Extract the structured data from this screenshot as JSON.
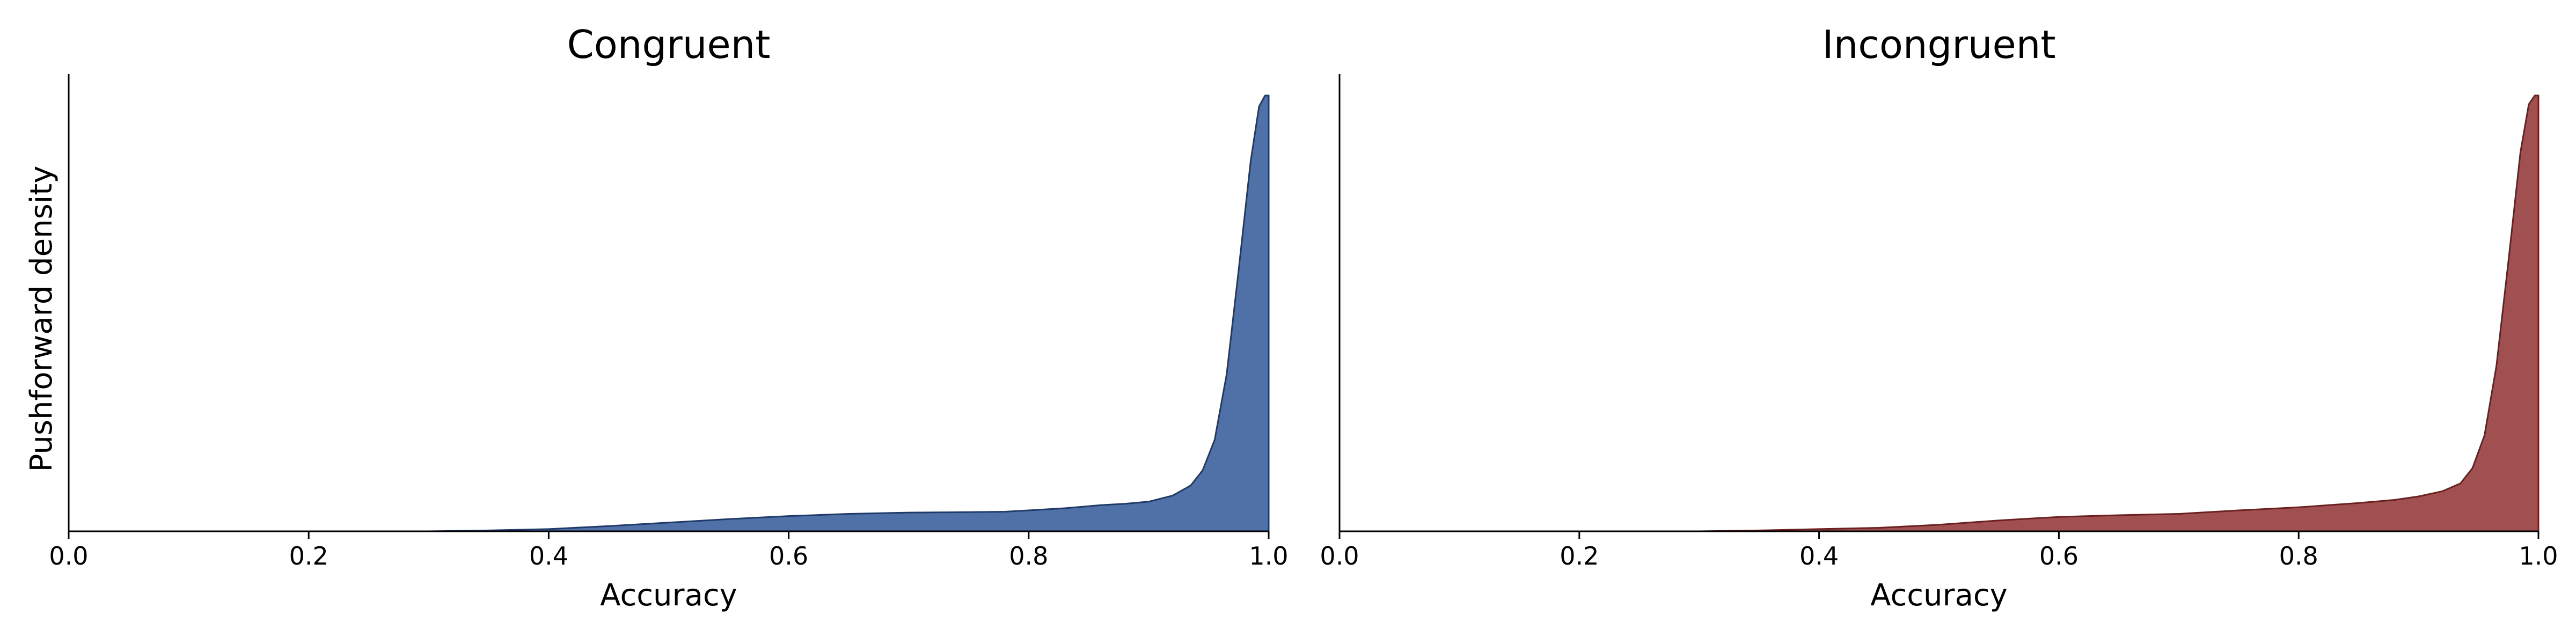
{
  "chart_data": [
    {
      "type": "area",
      "title": "Congruent",
      "xlabel": "Accuracy",
      "ylabel": "Pushforward density",
      "xlim": [
        0.0,
        1.0
      ],
      "xticks": [
        "0.0",
        "0.2",
        "0.4",
        "0.6",
        "0.8",
        "1.0"
      ],
      "ylim": [
        0,
        1.0
      ],
      "show_yticks": false,
      "grid": false,
      "fill_color": "#4f71a8",
      "line_color": "#1f3a68",
      "series": [
        {
          "x": [
            0.3,
            0.35,
            0.4,
            0.45,
            0.5,
            0.55,
            0.6,
            0.65,
            0.7,
            0.75,
            0.78,
            0.8,
            0.83,
            0.86,
            0.88,
            0.9,
            0.92,
            0.935,
            0.945,
            0.955,
            0.965,
            0.975,
            0.985,
            0.992,
            0.997,
            1.0
          ],
          "y": [
            0.0,
            0.002,
            0.005,
            0.012,
            0.02,
            0.028,
            0.035,
            0.04,
            0.043,
            0.044,
            0.045,
            0.048,
            0.053,
            0.06,
            0.063,
            0.068,
            0.082,
            0.105,
            0.14,
            0.21,
            0.36,
            0.6,
            0.85,
            0.975,
            1.0,
            1.0
          ]
        }
      ]
    },
    {
      "type": "area",
      "title": "Incongruent",
      "xlabel": "Accuracy",
      "ylabel": "",
      "xlim": [
        0.0,
        1.0
      ],
      "xticks": [
        "0.0",
        "0.2",
        "0.4",
        "0.6",
        "0.8",
        "1.0"
      ],
      "ylim": [
        0,
        1.0
      ],
      "show_yticks": false,
      "grid": false,
      "fill_color": "#a05050",
      "line_color": "#6b1f1f",
      "series": [
        {
          "x": [
            0.3,
            0.35,
            0.4,
            0.45,
            0.5,
            0.55,
            0.6,
            0.65,
            0.7,
            0.75,
            0.8,
            0.85,
            0.88,
            0.9,
            0.92,
            0.935,
            0.945,
            0.955,
            0.965,
            0.975,
            0.985,
            0.992,
            0.997,
            1.0
          ],
          "y": [
            0.0,
            0.002,
            0.005,
            0.008,
            0.015,
            0.025,
            0.033,
            0.037,
            0.04,
            0.048,
            0.055,
            0.065,
            0.072,
            0.08,
            0.092,
            0.11,
            0.145,
            0.22,
            0.38,
            0.62,
            0.87,
            0.98,
            1.0,
            1.0
          ]
        }
      ]
    }
  ]
}
